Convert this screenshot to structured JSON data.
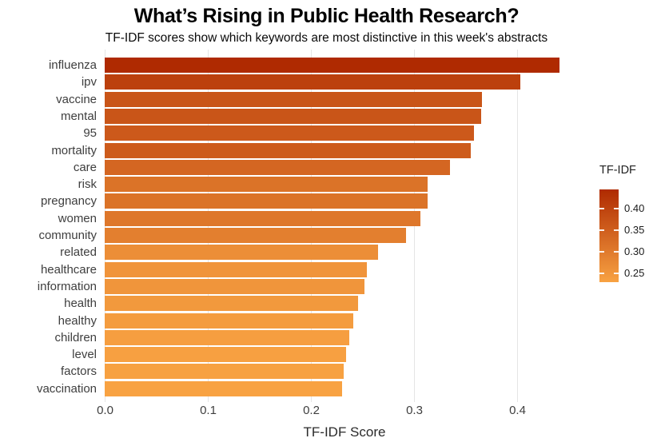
{
  "title": "What’s Rising in Public Health Research?",
  "subtitle": "TF-IDF scores show which keywords are most distinctive in this week's abstracts",
  "chart_data": {
    "type": "bar",
    "orientation": "horizontal",
    "title": "What’s Rising in Public Health Research?",
    "subtitle": "TF-IDF scores show which keywords are most distinctive in this week's abstracts",
    "xlabel": "TF-IDF Score",
    "ylabel": "",
    "xlim": [
      0.0,
      0.46
    ],
    "x_ticks": [
      0.0,
      0.1,
      0.2,
      0.3,
      0.4
    ],
    "grid": "vertical major gridlines only, light gray on white",
    "categories": [
      "influenza",
      "ipv",
      "vaccine",
      "mental",
      "95",
      "mortality",
      "care",
      "risk",
      "pregnancy",
      "women",
      "community",
      "related",
      "healthcare",
      "information",
      "health",
      "healthy",
      "children",
      "level",
      "factors",
      "vaccination"
    ],
    "values": [
      0.441,
      0.403,
      0.366,
      0.365,
      0.358,
      0.355,
      0.335,
      0.313,
      0.313,
      0.306,
      0.292,
      0.265,
      0.254,
      0.252,
      0.246,
      0.241,
      0.237,
      0.234,
      0.232,
      0.23
    ],
    "color_scale": {
      "type": "continuous-gradient",
      "low_color": "#F8A242",
      "high_color": "#AF2A01",
      "domain": [
        0.23,
        0.441
      ]
    },
    "legend": {
      "title": "TF-IDF",
      "position": "right",
      "tick_values": [
        0.4,
        0.35,
        0.3,
        0.25
      ],
      "tick_labels": [
        "0.40",
        "0.35",
        "0.30",
        "0.25"
      ],
      "domain": [
        0.2295,
        0.4435
      ]
    }
  }
}
